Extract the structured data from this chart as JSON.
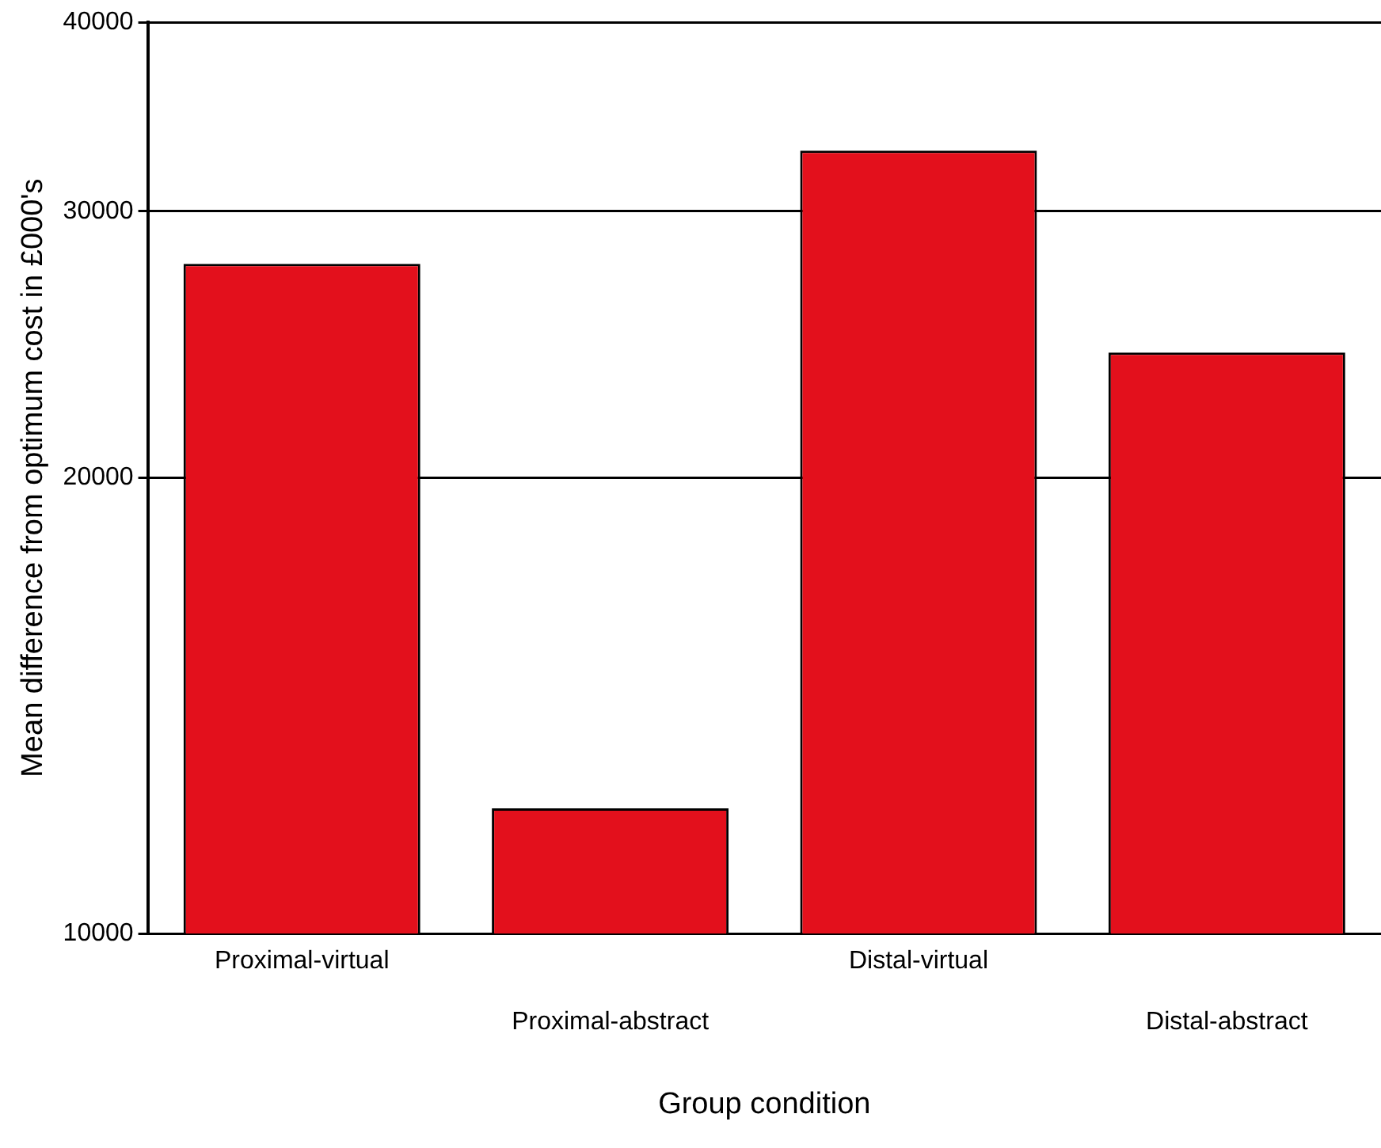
{
  "chart_data": {
    "type": "bar",
    "xlabel": "Group condition",
    "ylabel": "Mean difference from optimum cost in £000's",
    "categories": [
      "Proximal-virtual",
      "Proximal-abstract",
      "Distal-virtual",
      "Distal-abstract"
    ],
    "values": [
      27700,
      12100,
      32900,
      24200
    ],
    "color": "#e3101c",
    "log": "y",
    "ylim": [
      10000,
      40000
    ],
    "yticks": [
      10000,
      20000,
      30000,
      40000
    ],
    "grid": "y",
    "legend": false
  }
}
